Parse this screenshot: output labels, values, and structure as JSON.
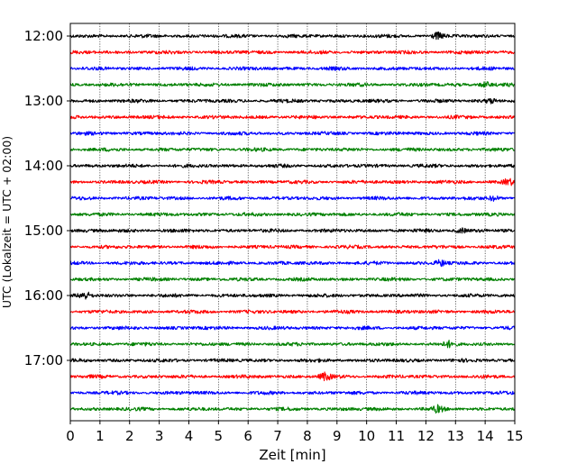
{
  "chart_data": {
    "type": "line",
    "xlabel": "Zeit  [min]",
    "ylabel": "UTC (Lokalzeit = UTC + 02:00)",
    "xlim": [
      0,
      15
    ],
    "x_ticks": [
      "0",
      "1",
      "2",
      "3",
      "4",
      "5",
      "6",
      "7",
      "8",
      "9",
      "10",
      "11",
      "12",
      "13",
      "14",
      "15"
    ],
    "y_tick_labels": [
      "12:00",
      "13:00",
      "14:00",
      "15:00",
      "16:00",
      "17:00"
    ],
    "grid": "vertical dotted at each minute",
    "trace_colors": [
      "#000000",
      "#ff0000",
      "#0000ff",
      "#008000"
    ],
    "traces": [
      {
        "start": "12:00",
        "color": "#000000"
      },
      {
        "start": "12:15",
        "color": "#ff0000"
      },
      {
        "start": "12:30",
        "color": "#0000ff"
      },
      {
        "start": "12:45",
        "color": "#008000"
      },
      {
        "start": "13:00",
        "color": "#000000"
      },
      {
        "start": "13:15",
        "color": "#ff0000"
      },
      {
        "start": "13:30",
        "color": "#0000ff"
      },
      {
        "start": "13:45",
        "color": "#008000"
      },
      {
        "start": "14:00",
        "color": "#000000"
      },
      {
        "start": "14:15",
        "color": "#ff0000"
      },
      {
        "start": "14:30",
        "color": "#0000ff"
      },
      {
        "start": "14:45",
        "color": "#008000"
      },
      {
        "start": "15:00",
        "color": "#000000"
      },
      {
        "start": "15:15",
        "color": "#ff0000"
      },
      {
        "start": "15:30",
        "color": "#0000ff"
      },
      {
        "start": "15:45",
        "color": "#008000"
      },
      {
        "start": "16:00",
        "color": "#000000"
      },
      {
        "start": "16:15",
        "color": "#ff0000"
      },
      {
        "start": "16:30",
        "color": "#0000ff"
      },
      {
        "start": "16:45",
        "color": "#008000"
      },
      {
        "start": "17:00",
        "color": "#000000"
      },
      {
        "start": "17:15",
        "color": "#ff0000"
      },
      {
        "start": "17:30",
        "color": "#0000ff"
      },
      {
        "start": "17:45",
        "color": "#008000"
      }
    ],
    "events": [
      {
        "trace": 0,
        "x": 12.4,
        "amp": 1.8
      },
      {
        "trace": 3,
        "x": 14.0,
        "amp": 1.6
      },
      {
        "trace": 4,
        "x": 14.2,
        "amp": 1.4
      },
      {
        "trace": 9,
        "x": 14.8,
        "amp": 1.8
      },
      {
        "trace": 10,
        "x": 14.3,
        "amp": 1.6
      },
      {
        "trace": 12,
        "x": 13.2,
        "amp": 1.3
      },
      {
        "trace": 14,
        "x": 12.5,
        "amp": 1.7
      },
      {
        "trace": 16,
        "x": 0.5,
        "amp": 2.0
      },
      {
        "trace": 19,
        "x": 12.8,
        "amp": 1.6
      },
      {
        "trace": 21,
        "x": 8.6,
        "amp": 2.2
      },
      {
        "trace": 23,
        "x": 12.4,
        "amp": 1.8
      }
    ]
  }
}
